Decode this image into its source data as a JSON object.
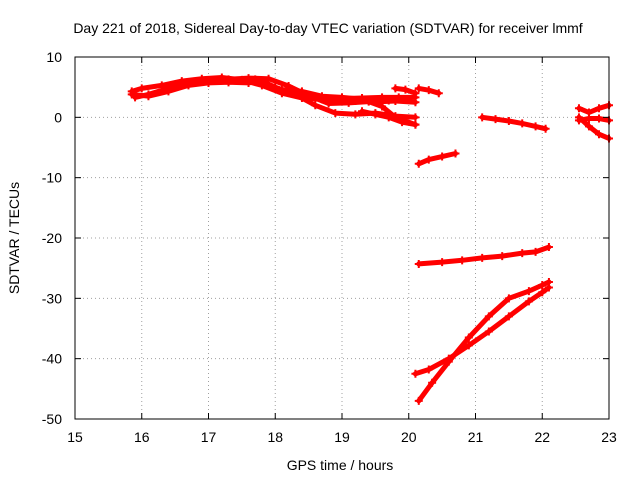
{
  "chart_data": {
    "type": "scatter",
    "title": "Day 221 of 2018, Sidereal Day-to-day VTEC variation (SDTVAR) for receiver lmmf",
    "xlabel": "GPS time / hours",
    "ylabel": "SDTVAR / TECUs",
    "xlim": [
      15,
      23
    ],
    "ylim": [
      -50,
      10
    ],
    "xticks": [
      15,
      16,
      17,
      18,
      19,
      20,
      21,
      22,
      23
    ],
    "yticks": [
      -50,
      -40,
      -30,
      -20,
      -10,
      0,
      10
    ],
    "grid": true,
    "marker_color": "#ff0000",
    "series": [
      {
        "x": [
          15.85,
          16.0,
          16.3,
          16.6,
          16.9,
          17.2,
          17.5,
          17.8,
          18.1,
          18.4,
          18.7,
          19.0,
          19.3,
          19.6,
          19.85,
          20.1
        ],
        "y": [
          4.3,
          4.8,
          5.3,
          6.0,
          6.4,
          6.6,
          6.2,
          5.3,
          4.0,
          3.2,
          3.0,
          3.1,
          3.2,
          3.3,
          3.3,
          3.3
        ]
      },
      {
        "x": [
          15.9,
          16.1,
          16.4,
          16.7,
          17.0,
          17.3,
          17.6,
          17.9,
          18.2,
          18.5,
          18.8,
          19.1,
          19.4,
          19.7
        ],
        "y": [
          3.3,
          3.8,
          4.8,
          5.6,
          6.0,
          6.3,
          6.5,
          6.4,
          5.2,
          3.6,
          2.3,
          2.4,
          2.6,
          2.8
        ]
      },
      {
        "x": [
          15.85,
          16.1,
          16.4,
          16.7,
          17.0,
          17.3,
          17.6,
          17.8,
          18.0,
          18.3,
          18.6,
          18.9,
          19.2,
          19.5,
          19.8,
          20.1
        ],
        "y": [
          3.8,
          3.5,
          4.3,
          5.3,
          5.7,
          5.8,
          5.7,
          6.0,
          5.0,
          3.8,
          2.0,
          0.7,
          0.5,
          0.7,
          0.2,
          0.0
        ]
      },
      {
        "x": [
          17.7,
          17.9,
          18.1,
          18.4,
          18.7,
          19.0,
          19.3,
          19.6,
          19.8,
          20.1
        ],
        "y": [
          6.3,
          5.2,
          4.6,
          4.3,
          3.5,
          3.3,
          3.0,
          1.8,
          0.0,
          -1.2
        ]
      },
      {
        "x": [
          18.4,
          18.6,
          18.8,
          19.0,
          19.2,
          19.4,
          19.6,
          19.8,
          20.1
        ],
        "y": [
          3.8,
          3.2,
          3.0,
          2.7,
          2.7,
          2.7,
          2.6,
          2.7,
          2.5
        ]
      },
      {
        "x": [
          19.3,
          19.5,
          19.7,
          19.9,
          20.1
        ],
        "y": [
          1.0,
          0.5,
          0.0,
          -0.8,
          -1.2
        ]
      },
      {
        "x": [
          19.8,
          19.95,
          20.1
        ],
        "y": [
          4.8,
          4.6,
          4.0
        ]
      },
      {
        "x": [
          20.15,
          20.3,
          20.45
        ],
        "y": [
          4.8,
          4.5,
          4.0
        ]
      },
      {
        "x": [
          20.15,
          20.3,
          20.5,
          20.7
        ],
        "y": [
          -7.7,
          -7.0,
          -6.5,
          -6.0
        ]
      },
      {
        "x": [
          21.1,
          21.3,
          21.5,
          21.7,
          21.9,
          22.05
        ],
        "y": [
          0.0,
          -0.3,
          -0.6,
          -1.0,
          -1.5,
          -1.9
        ]
      },
      {
        "x": [
          20.15,
          20.5,
          20.8,
          21.1,
          21.4,
          21.7,
          21.9,
          22.1
        ],
        "y": [
          -24.3,
          -24.0,
          -23.7,
          -23.3,
          -23.0,
          -22.5,
          -22.3,
          -21.5
        ]
      },
      {
        "x": [
          20.1,
          20.3,
          20.6,
          20.9,
          21.2,
          21.5,
          21.8,
          22.0,
          22.1
        ],
        "y": [
          -42.5,
          -41.8,
          -40.0,
          -37.8,
          -35.5,
          -33.0,
          -30.5,
          -29.0,
          -28.2
        ]
      },
      {
        "x": [
          20.15,
          20.35,
          20.6,
          20.9,
          21.2,
          21.5,
          21.8,
          22.0,
          22.1
        ],
        "y": [
          -47.0,
          -44.0,
          -40.5,
          -36.5,
          -33.0,
          -30.0,
          -28.8,
          -27.8,
          -27.3
        ]
      },
      {
        "x": [
          22.55,
          22.7,
          22.85,
          23.0
        ],
        "y": [
          1.5,
          0.8,
          1.5,
          2.0
        ]
      },
      {
        "x": [
          22.55,
          22.7,
          22.85,
          23.0
        ],
        "y": [
          -0.5,
          -0.2,
          -0.2,
          -0.5
        ]
      },
      {
        "x": [
          22.55,
          22.7,
          22.85,
          23.0
        ],
        "y": [
          0.0,
          -1.5,
          -2.8,
          -3.5
        ]
      }
    ]
  }
}
